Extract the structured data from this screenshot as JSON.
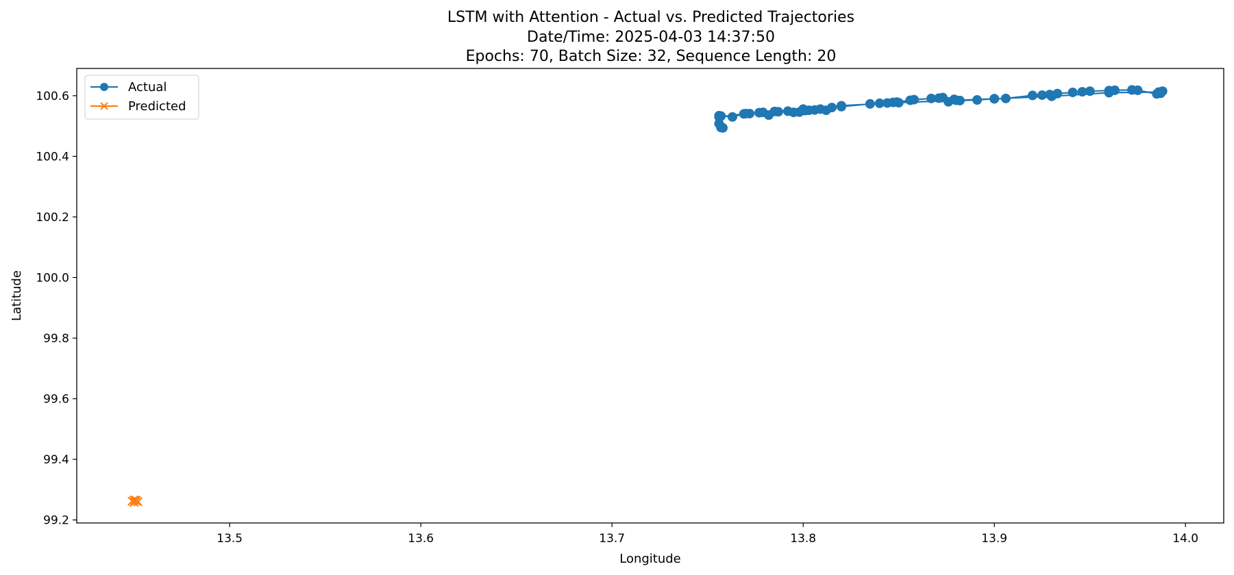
{
  "chart_data": {
    "type": "line",
    "title_lines": [
      "LSTM with Attention - Actual vs. Predicted Trajectories",
      "Date/Time: 2025-04-03 14:37:50",
      "Epochs: 70, Batch Size: 32, Sequence Length: 20"
    ],
    "xlabel": "Longitude",
    "ylabel": "Latitude",
    "xlim": [
      13.42,
      14.02
    ],
    "ylim": [
      99.19,
      100.69
    ],
    "xticks": [
      13.5,
      13.6,
      13.7,
      13.8,
      13.9,
      14.0
    ],
    "xtick_labels": [
      "13.5",
      "13.6",
      "13.7",
      "13.8",
      "13.9",
      "14.0"
    ],
    "yticks": [
      99.2,
      99.4,
      99.6,
      99.8,
      100.0,
      100.2,
      100.4,
      100.6
    ],
    "ytick_labels": [
      "99.2",
      "99.4",
      "99.6",
      "99.8",
      "100.0",
      "100.2",
      "100.4",
      "100.6"
    ],
    "grid": false,
    "legend_position": "top-left",
    "series": [
      {
        "name": "Actual",
        "color": "#1f77b4",
        "marker": "circle",
        "x": [
          13.756,
          13.757,
          13.758,
          13.756,
          13.757,
          13.756,
          13.763,
          13.769,
          13.772,
          13.777,
          13.779,
          13.782,
          13.787,
          13.792,
          13.795,
          13.798,
          13.801,
          13.803,
          13.806,
          13.809,
          13.812,
          13.815,
          13.82,
          13.835,
          13.84,
          13.844,
          13.847,
          13.849,
          13.856,
          13.858,
          13.867,
          13.871,
          13.873,
          13.876,
          13.879,
          13.882,
          13.891,
          13.9,
          13.906,
          13.92,
          13.925,
          13.929,
          13.933,
          13.941,
          13.946,
          13.95,
          13.96,
          13.963,
          13.972,
          13.975,
          13.985,
          13.987,
          13.988,
          13.986,
          13.96,
          13.93,
          13.9,
          13.88,
          13.85,
          13.82,
          13.8,
          13.785,
          13.77,
          13.756
        ],
        "y": [
          100.533,
          100.495,
          100.494,
          100.508,
          100.533,
          100.534,
          100.53,
          100.54,
          100.541,
          100.544,
          100.545,
          100.536,
          100.547,
          100.549,
          100.545,
          100.546,
          100.551,
          100.552,
          100.553,
          100.556,
          100.552,
          100.561,
          100.564,
          100.573,
          100.575,
          100.576,
          100.578,
          100.579,
          100.585,
          100.587,
          100.591,
          100.592,
          100.594,
          100.58,
          100.588,
          100.584,
          100.586,
          100.59,
          100.591,
          100.601,
          100.602,
          100.604,
          100.607,
          100.611,
          100.613,
          100.615,
          100.617,
          100.618,
          100.619,
          100.618,
          100.606,
          100.608,
          100.615,
          100.612,
          100.61,
          100.598,
          100.59,
          100.585,
          100.577,
          100.567,
          100.556,
          100.548,
          100.541,
          100.53
        ]
      },
      {
        "name": "Predicted",
        "color": "#ff7f0e",
        "marker": "x",
        "x": [
          13.449,
          13.45,
          13.451,
          13.452,
          13.45,
          13.451
        ],
        "y": [
          99.262,
          99.266,
          99.263,
          99.26,
          99.258,
          99.265
        ]
      }
    ]
  }
}
